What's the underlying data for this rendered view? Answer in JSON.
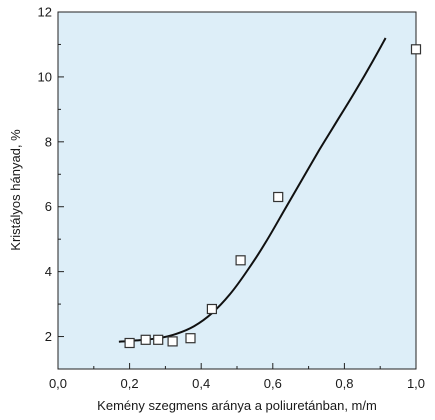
{
  "chart_data": {
    "type": "scatter",
    "title": "",
    "xlabel": "Kemény szegmens aránya a poliuretánban, m/m",
    "ylabel": "Kristályos hányad, %",
    "xlim": [
      0,
      1.0
    ],
    "ylim": [
      1,
      12
    ],
    "x_ticks": [
      {
        "value": 0.0,
        "label": "0,0"
      },
      {
        "value": 0.2,
        "label": "0,2"
      },
      {
        "value": 0.4,
        "label": "0,4"
      },
      {
        "value": 0.6,
        "label": "0,6"
      },
      {
        "value": 0.8,
        "label": "0,8"
      },
      {
        "value": 1.0,
        "label": "1,0"
      }
    ],
    "y_ticks": [
      {
        "value": 2,
        "label": "2"
      },
      {
        "value": 4,
        "label": "4"
      },
      {
        "value": 6,
        "label": "6"
      },
      {
        "value": 8,
        "label": "8"
      },
      {
        "value": 10,
        "label": "10"
      },
      {
        "value": 12,
        "label": "12"
      }
    ],
    "grid": false,
    "plot_background": "#ddeef8",
    "series": [
      {
        "type": "scatter",
        "marker": "open-square",
        "points": [
          {
            "x": 0.2,
            "y": 1.8
          },
          {
            "x": 0.245,
            "y": 1.9
          },
          {
            "x": 0.28,
            "y": 1.9
          },
          {
            "x": 0.32,
            "y": 1.85
          },
          {
            "x": 0.37,
            "y": 1.95
          },
          {
            "x": 0.43,
            "y": 2.85
          },
          {
            "x": 0.51,
            "y": 4.35
          },
          {
            "x": 0.615,
            "y": 6.3
          },
          {
            "x": 1.0,
            "y": 10.85
          }
        ]
      },
      {
        "type": "line",
        "points": [
          {
            "x": 0.17,
            "y": 1.84
          },
          {
            "x": 0.22,
            "y": 1.88
          },
          {
            "x": 0.28,
            "y": 1.95
          },
          {
            "x": 0.33,
            "y": 2.08
          },
          {
            "x": 0.38,
            "y": 2.32
          },
          {
            "x": 0.43,
            "y": 2.72
          },
          {
            "x": 0.48,
            "y": 3.3
          },
          {
            "x": 0.53,
            "y": 4.05
          },
          {
            "x": 0.58,
            "y": 4.9
          },
          {
            "x": 0.63,
            "y": 5.85
          },
          {
            "x": 0.68,
            "y": 6.8
          },
          {
            "x": 0.73,
            "y": 7.75
          },
          {
            "x": 0.78,
            "y": 8.65
          },
          {
            "x": 0.83,
            "y": 9.55
          },
          {
            "x": 0.88,
            "y": 10.5
          },
          {
            "x": 0.915,
            "y": 11.2
          }
        ]
      }
    ]
  }
}
